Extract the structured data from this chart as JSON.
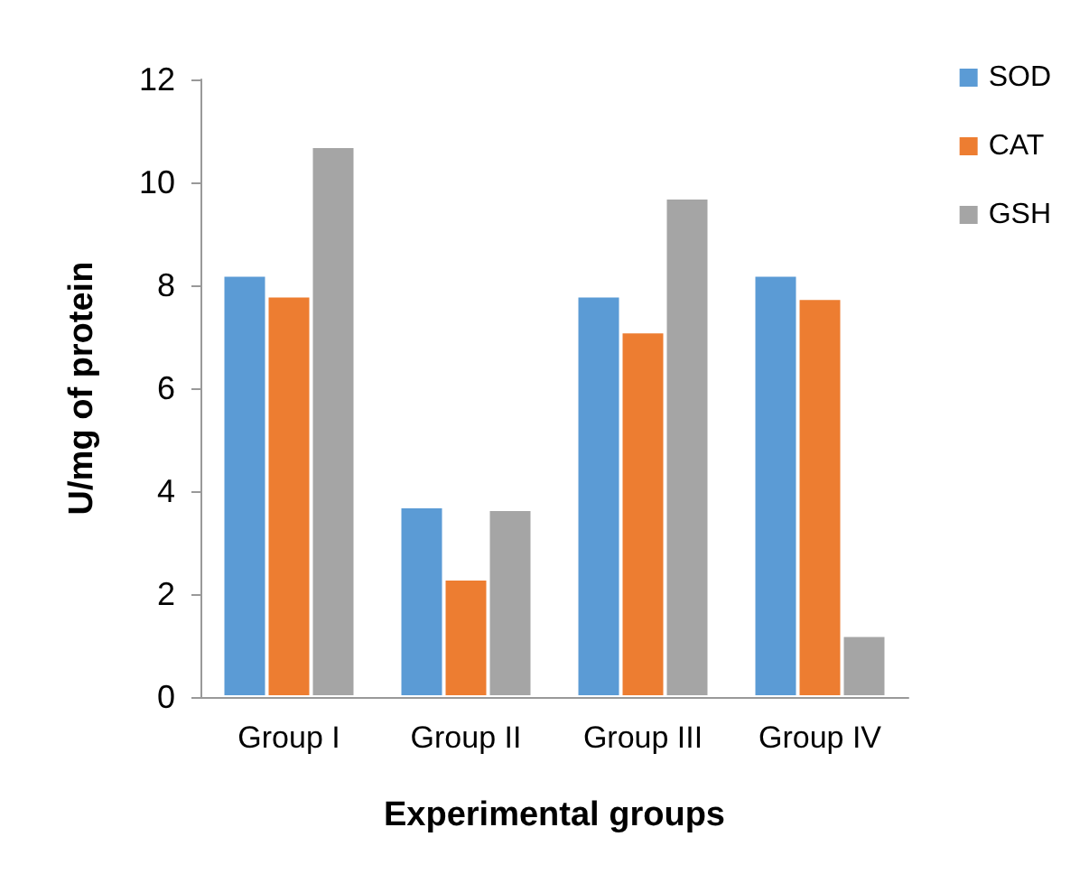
{
  "chart_data": {
    "type": "bar",
    "xlabel": "Experimental groups",
    "ylabel": "U/mg of protein",
    "categories": [
      "Group I",
      "Group II",
      "Group III",
      "Group IV"
    ],
    "series": [
      {
        "name": "SOD",
        "color": "#5b9bd5",
        "values": [
          8.2,
          3.7,
          7.8,
          8.2
        ]
      },
      {
        "name": "CAT",
        "color": "#ed7d31",
        "values": [
          7.8,
          2.3,
          7.1,
          7.75
        ]
      },
      {
        "name": "GSH",
        "color": "#a5a5a5",
        "values": [
          10.7,
          3.65,
          9.7,
          1.2
        ]
      }
    ],
    "ylim": [
      0,
      12
    ],
    "yticks": [
      0,
      2,
      4,
      6,
      8,
      10,
      12
    ],
    "grid": false,
    "legend": "top right"
  }
}
